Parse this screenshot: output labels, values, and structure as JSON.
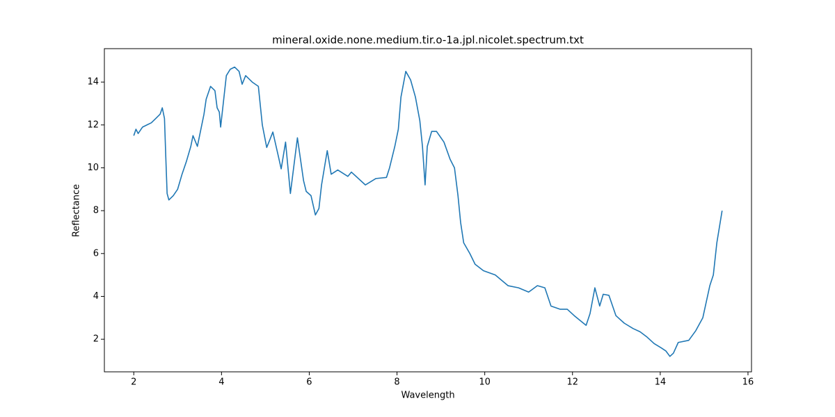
{
  "chart_data": {
    "type": "line",
    "title": "mineral.oxide.none.medium.tir.o-1a.jpl.nicolet.spectrum.txt",
    "x_label": "Wavelength",
    "y_label": "Reflectance",
    "xlim": [
      1.33,
      16.08
    ],
    "ylim": [
      0.48,
      15.56
    ],
    "xticks": [
      2,
      4,
      6,
      8,
      10,
      12,
      14,
      16
    ],
    "yticks": [
      2,
      4,
      6,
      8,
      10,
      12,
      14
    ],
    "series": [
      {
        "color": "#1f77b4",
        "x": [
          2.0,
          2.05,
          2.1,
          2.2,
          2.3,
          2.4,
          2.5,
          2.6,
          2.65,
          2.7,
          2.73,
          2.76,
          2.8,
          2.9,
          3.0,
          3.1,
          3.2,
          3.3,
          3.35,
          3.45,
          3.5,
          3.6,
          3.65,
          3.75,
          3.85,
          3.9,
          3.95,
          3.98,
          4.11,
          4.2,
          4.3,
          4.4,
          4.47,
          4.55,
          4.7,
          4.84,
          4.93,
          5.03,
          5.1,
          5.17,
          5.3,
          5.36,
          5.46,
          5.57,
          5.73,
          5.87,
          5.93,
          6.04,
          6.14,
          6.22,
          6.28,
          6.41,
          6.5,
          6.65,
          6.88,
          6.96,
          7.28,
          7.52,
          7.76,
          7.83,
          7.95,
          8.03,
          8.09,
          8.2,
          8.31,
          8.42,
          8.52,
          8.58,
          8.64,
          8.69,
          8.79,
          8.9,
          9.07,
          9.21,
          9.31,
          9.39,
          9.45,
          9.52,
          9.66,
          9.78,
          9.97,
          10.24,
          10.53,
          10.77,
          11.0,
          11.2,
          11.37,
          11.51,
          11.72,
          11.88,
          12.04,
          12.31,
          12.4,
          12.51,
          12.62,
          12.7,
          12.83,
          12.99,
          13.18,
          13.38,
          13.54,
          13.7,
          13.86,
          14.02,
          14.13,
          14.22,
          14.3,
          14.41,
          14.65,
          14.81,
          14.97,
          15.13,
          15.21,
          15.29,
          15.41
        ],
        "values": [
          11.5,
          11.8,
          11.6,
          11.9,
          12.0,
          12.1,
          12.3,
          12.5,
          12.8,
          12.3,
          10.5,
          8.8,
          8.5,
          8.7,
          9.0,
          9.7,
          10.3,
          11.0,
          11.5,
          11.0,
          11.5,
          12.5,
          13.2,
          13.8,
          13.6,
          12.8,
          12.6,
          11.9,
          14.3,
          14.6,
          14.7,
          14.5,
          13.9,
          14.3,
          14.0,
          13.8,
          12.0,
          10.95,
          11.3,
          11.67,
          10.5,
          9.95,
          11.2,
          8.8,
          11.4,
          9.4,
          8.9,
          8.7,
          7.8,
          8.1,
          9.2,
          10.8,
          9.7,
          9.9,
          9.6,
          9.8,
          9.2,
          9.5,
          9.55,
          10.0,
          11.0,
          11.8,
          13.3,
          14.5,
          14.1,
          13.3,
          12.2,
          11.0,
          9.2,
          11.0,
          11.7,
          11.7,
          11.2,
          10.4,
          10.0,
          8.7,
          7.45,
          6.5,
          6.0,
          5.5,
          5.2,
          5.0,
          4.5,
          4.4,
          4.2,
          4.5,
          4.4,
          3.55,
          3.4,
          3.4,
          3.1,
          2.65,
          3.2,
          4.4,
          3.55,
          4.1,
          4.05,
          3.1,
          2.75,
          2.5,
          2.35,
          2.1,
          1.8,
          1.6,
          1.45,
          1.2,
          1.35,
          1.85,
          1.95,
          2.4,
          3.0,
          4.5,
          5.0,
          6.5,
          8.0
        ]
      }
    ]
  }
}
